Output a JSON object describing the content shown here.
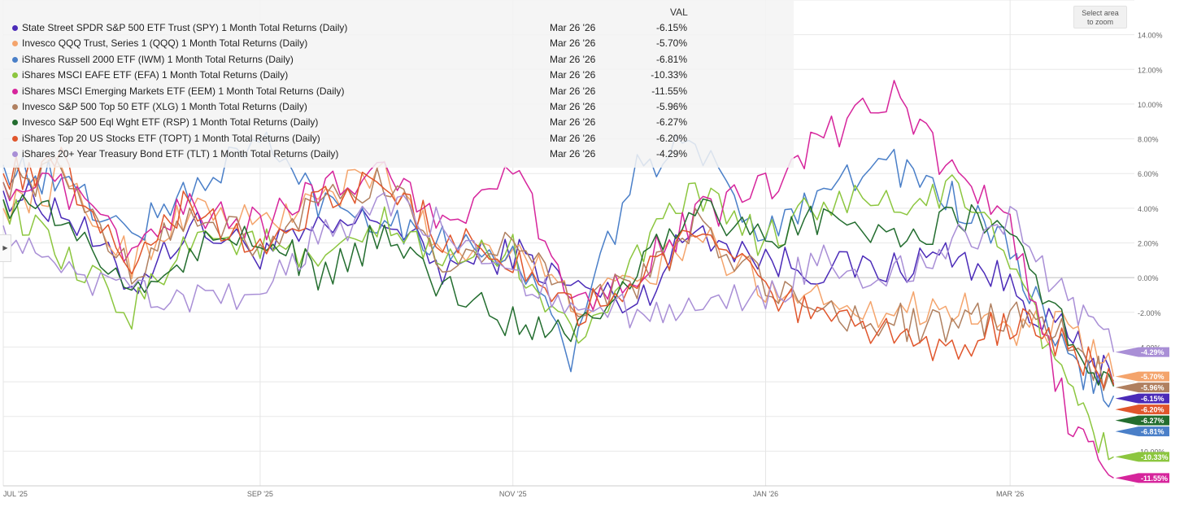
{
  "zoom_button": {
    "line1": "Select area",
    "line2": "to zoom"
  },
  "legend": {
    "value_header": "VAL"
  },
  "chart_data": {
    "type": "line",
    "x_range": [
      "2025-07-01",
      "2026-03-31"
    ],
    "ylim": [
      -12,
      16
    ],
    "y_ticks": [
      "14.00%",
      "12.00%",
      "10.00%",
      "8.00%",
      "6.00%",
      "4.00%",
      "2.00%",
      "0.00%",
      "-2.00%",
      "-4.00%",
      "-10.00%"
    ],
    "x_ticks": [
      {
        "date": "2025-07-01",
        "label": "JUL '25"
      },
      {
        "date": "2025-09-01",
        "label": "SEP '25"
      },
      {
        "date": "2025-11-01",
        "label": "NOV '25"
      },
      {
        "date": "2026-01-01",
        "label": "JAN '26"
      },
      {
        "date": "2026-03-01",
        "label": "MAR '26"
      }
    ],
    "grid": true,
    "legend_position": "top-left",
    "series": [
      {
        "name": "State Street SPDR S&P 500 ETF Trust (SPY) 1 Month Total Returns (Daily)",
        "color": "#4b2bb8",
        "last_date": "Mar 26 '26",
        "last_label": "-6.15%",
        "last_value": -6.15,
        "points": [
          [
            "2025-07-01",
            5.0
          ],
          [
            "2025-07-15",
            4.0
          ],
          [
            "2025-08-01",
            -0.5
          ],
          [
            "2025-08-15",
            3.0
          ],
          [
            "2025-09-01",
            1.5
          ],
          [
            "2025-09-15",
            2.5
          ],
          [
            "2025-10-01",
            3.5
          ],
          [
            "2025-10-15",
            0.5
          ],
          [
            "2025-11-01",
            1.5
          ],
          [
            "2025-11-15",
            -0.5
          ],
          [
            "2025-12-01",
            -1.5
          ],
          [
            "2025-12-15",
            3.0
          ],
          [
            "2026-01-01",
            1.0
          ],
          [
            "2026-01-15",
            0.5
          ],
          [
            "2026-02-01",
            0.5
          ],
          [
            "2026-02-15",
            1.5
          ],
          [
            "2026-03-01",
            -0.5
          ],
          [
            "2026-03-15",
            -3.5
          ],
          [
            "2026-03-26",
            -6.15
          ]
        ]
      },
      {
        "name": "Invesco QQQ Trust, Series 1 (QQQ) 1 Month Total Returns (Daily)",
        "color": "#f4a46c",
        "last_date": "Mar 26 '26",
        "last_label": "-5.70%",
        "last_value": -5.7,
        "points": [
          [
            "2025-07-01",
            4.0
          ],
          [
            "2025-07-15",
            5.5
          ],
          [
            "2025-08-01",
            1.0
          ],
          [
            "2025-08-15",
            4.0
          ],
          [
            "2025-09-01",
            3.0
          ],
          [
            "2025-09-15",
            4.5
          ],
          [
            "2025-10-01",
            6.0
          ],
          [
            "2025-10-15",
            1.5
          ],
          [
            "2025-11-01",
            2.0
          ],
          [
            "2025-11-15",
            -1.5
          ],
          [
            "2025-12-01",
            -0.5
          ],
          [
            "2025-12-15",
            2.5
          ],
          [
            "2026-01-01",
            -0.5
          ],
          [
            "2026-01-15",
            -1.0
          ],
          [
            "2026-02-01",
            -2.0
          ],
          [
            "2026-02-15",
            -1.5
          ],
          [
            "2026-03-01",
            -3.0
          ],
          [
            "2026-03-15",
            -3.0
          ],
          [
            "2026-03-26",
            -5.7
          ]
        ]
      },
      {
        "name": "iShares Russell 2000 ETF (IWM) 1 Month Total Returns (Daily)",
        "color": "#4a7fc8",
        "last_date": "Mar 26 '26",
        "last_label": "-6.81%",
        "last_value": -6.81,
        "points": [
          [
            "2025-07-01",
            6.5
          ],
          [
            "2025-07-15",
            5.5
          ],
          [
            "2025-08-01",
            2.5
          ],
          [
            "2025-08-15",
            5.0
          ],
          [
            "2025-09-01",
            8.0
          ],
          [
            "2025-09-15",
            4.5
          ],
          [
            "2025-10-01",
            3.5
          ],
          [
            "2025-10-15",
            2.0
          ],
          [
            "2025-11-01",
            1.5
          ],
          [
            "2025-11-15",
            -4.5
          ],
          [
            "2025-12-01",
            6.5
          ],
          [
            "2025-12-15",
            7.5
          ],
          [
            "2026-01-01",
            2.5
          ],
          [
            "2026-01-15",
            5.5
          ],
          [
            "2026-02-01",
            6.5
          ],
          [
            "2026-02-15",
            4.5
          ],
          [
            "2026-03-01",
            1.5
          ],
          [
            "2026-03-15",
            -5.0
          ],
          [
            "2026-03-26",
            -6.81
          ]
        ]
      },
      {
        "name": "iShares MSCI EAFE ETF (EFA) 1 Month Total Returns (Daily)",
        "color": "#8cc63f",
        "last_date": "Mar 26 '26",
        "last_label": "-10.33%",
        "last_value": -10.33,
        "points": [
          [
            "2025-07-01",
            4.5
          ],
          [
            "2025-07-15",
            1.0
          ],
          [
            "2025-08-01",
            -2.0
          ],
          [
            "2025-08-15",
            2.5
          ],
          [
            "2025-09-01",
            2.0
          ],
          [
            "2025-09-15",
            0.5
          ],
          [
            "2025-10-01",
            3.0
          ],
          [
            "2025-10-15",
            1.0
          ],
          [
            "2025-11-01",
            1.5
          ],
          [
            "2025-11-15",
            -3.5
          ],
          [
            "2025-12-01",
            1.0
          ],
          [
            "2025-12-15",
            5.0
          ],
          [
            "2026-01-01",
            2.0
          ],
          [
            "2026-01-15",
            4.5
          ],
          [
            "2026-02-01",
            4.0
          ],
          [
            "2026-02-15",
            5.0
          ],
          [
            "2026-03-01",
            1.5
          ],
          [
            "2026-03-15",
            -7.0
          ],
          [
            "2026-03-26",
            -10.33
          ]
        ]
      },
      {
        "name": "iShares MSCI Emerging Markets ETF (EEM) 1 Month Total Returns (Daily)",
        "color": "#d6259c",
        "last_date": "Mar 26 '26",
        "last_label": "-11.55%",
        "last_value": -11.55,
        "points": [
          [
            "2025-07-01",
            5.5
          ],
          [
            "2025-07-15",
            5.0
          ],
          [
            "2025-08-01",
            1.5
          ],
          [
            "2025-08-15",
            4.0
          ],
          [
            "2025-09-01",
            3.0
          ],
          [
            "2025-09-15",
            5.0
          ],
          [
            "2025-10-01",
            6.5
          ],
          [
            "2025-10-15",
            3.0
          ],
          [
            "2025-11-01",
            6.5
          ],
          [
            "2025-11-15",
            -1.5
          ],
          [
            "2025-12-01",
            0.5
          ],
          [
            "2025-12-15",
            3.5
          ],
          [
            "2026-01-01",
            5.0
          ],
          [
            "2026-01-15",
            8.0
          ],
          [
            "2026-02-01",
            10.5
          ],
          [
            "2026-02-15",
            6.0
          ],
          [
            "2026-03-01",
            3.0
          ],
          [
            "2026-03-15",
            -8.0
          ],
          [
            "2026-03-26",
            -11.55
          ]
        ]
      },
      {
        "name": "Invesco S&P 500 Top 50 ETF (XLG) 1 Month Total Returns (Daily)",
        "color": "#b08060",
        "last_date": "Mar 26 '26",
        "last_label": "-5.96%",
        "last_value": -5.96,
        "points": [
          [
            "2025-07-01",
            5.5
          ],
          [
            "2025-07-15",
            6.0
          ],
          [
            "2025-08-01",
            0.5
          ],
          [
            "2025-08-15",
            3.5
          ],
          [
            "2025-09-01",
            2.0
          ],
          [
            "2025-09-15",
            4.0
          ],
          [
            "2025-10-01",
            5.5
          ],
          [
            "2025-10-15",
            1.0
          ],
          [
            "2025-11-01",
            2.0
          ],
          [
            "2025-11-15",
            -1.5
          ],
          [
            "2025-12-01",
            -0.5
          ],
          [
            "2025-12-15",
            3.0
          ],
          [
            "2026-01-01",
            -0.5
          ],
          [
            "2026-01-15",
            -2.0
          ],
          [
            "2026-02-01",
            -2.5
          ],
          [
            "2026-02-15",
            -3.0
          ],
          [
            "2026-03-01",
            -2.0
          ],
          [
            "2026-03-15",
            -3.5
          ],
          [
            "2026-03-26",
            -5.96
          ]
        ]
      },
      {
        "name": "Invesco S&P 500 Eql Wght ETF (RSP) 1 Month Total Returns (Daily)",
        "color": "#236d2f",
        "last_date": "Mar 26 '26",
        "last_label": "-6.27%",
        "last_value": -6.27,
        "points": [
          [
            "2025-07-01",
            4.5
          ],
          [
            "2025-07-15",
            3.5
          ],
          [
            "2025-08-01",
            -1.0
          ],
          [
            "2025-08-15",
            1.5
          ],
          [
            "2025-09-01",
            2.5
          ],
          [
            "2025-09-15",
            0.0
          ],
          [
            "2025-10-01",
            2.5
          ],
          [
            "2025-10-15",
            -0.5
          ],
          [
            "2025-11-01",
            -2.5
          ],
          [
            "2025-11-15",
            -3.0
          ],
          [
            "2025-12-01",
            0.5
          ],
          [
            "2025-12-15",
            4.5
          ],
          [
            "2026-01-01",
            2.0
          ],
          [
            "2026-01-15",
            3.5
          ],
          [
            "2026-02-01",
            2.0
          ],
          [
            "2026-02-15",
            3.5
          ],
          [
            "2026-03-01",
            3.0
          ],
          [
            "2026-03-15",
            -3.5
          ],
          [
            "2026-03-26",
            -6.27
          ]
        ]
      },
      {
        "name": "iShares Top 20 US Stocks ETF (TOPT) 1 Month Total Returns (Daily)",
        "color": "#e0562c",
        "last_date": "Mar 26 '26",
        "last_label": "-6.20%",
        "last_value": -6.2,
        "points": [
          [
            "2025-07-01",
            6.0
          ],
          [
            "2025-07-15",
            6.5
          ],
          [
            "2025-08-01",
            1.0
          ],
          [
            "2025-08-15",
            4.5
          ],
          [
            "2025-09-01",
            1.5
          ],
          [
            "2025-09-15",
            4.5
          ],
          [
            "2025-10-01",
            5.5
          ],
          [
            "2025-10-15",
            2.5
          ],
          [
            "2025-11-01",
            1.0
          ],
          [
            "2025-11-15",
            -2.0
          ],
          [
            "2025-12-01",
            -0.5
          ],
          [
            "2025-12-15",
            3.0
          ],
          [
            "2026-01-01",
            -1.0
          ],
          [
            "2026-01-15",
            -2.5
          ],
          [
            "2026-02-01",
            -3.5
          ],
          [
            "2026-02-15",
            -4.0
          ],
          [
            "2026-03-01",
            -2.5
          ],
          [
            "2026-03-15",
            -4.0
          ],
          [
            "2026-03-26",
            -6.2
          ]
        ]
      },
      {
        "name": "iShares 20+ Year Treasury Bond ETF (TLT) 1 Month Total Returns (Daily)",
        "color": "#a98fd6",
        "last_date": "Mar 26 '26",
        "last_label": "-4.29%",
        "last_value": -4.29,
        "points": [
          [
            "2025-07-01",
            3.0
          ],
          [
            "2025-07-15",
            0.0
          ],
          [
            "2025-08-01",
            -1.0
          ],
          [
            "2025-08-15",
            -1.5
          ],
          [
            "2025-09-01",
            -1.0
          ],
          [
            "2025-09-15",
            2.5
          ],
          [
            "2025-10-01",
            4.0
          ],
          [
            "2025-10-15",
            3.0
          ],
          [
            "2025-11-01",
            0.5
          ],
          [
            "2025-11-15",
            -2.0
          ],
          [
            "2025-12-01",
            -2.0
          ],
          [
            "2025-12-15",
            -1.5
          ],
          [
            "2026-01-01",
            -1.0
          ],
          [
            "2026-01-15",
            1.0
          ],
          [
            "2026-02-01",
            0.0
          ],
          [
            "2026-02-15",
            2.0
          ],
          [
            "2026-03-01",
            3.5
          ],
          [
            "2026-03-15",
            -1.5
          ],
          [
            "2026-03-26",
            -4.29
          ]
        ]
      }
    ]
  }
}
